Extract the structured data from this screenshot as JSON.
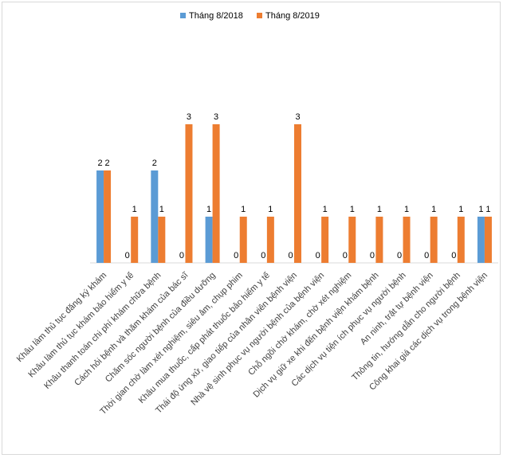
{
  "chart_data": {
    "type": "bar",
    "categories": [
      "Khâu làm thủ tục đăng ký khám",
      "Khâu làm thủ tục khám bảo hiểm y tế",
      "Khâu thanh toán chi phí khám chữa bệnh",
      "Cách hỏi bệnh và thăm khám của bác sĩ",
      "Chăm sóc người bệnh của điều dưỡng",
      "Thời gian chờ làm xét nghiệm, siêu âm, chụp phim",
      "Khâu mua thuốc, cấp phát thuốc bảo hiểm y tế",
      "Thái độ ứng xử, giao tiếp của nhân viên bệnh viện",
      "Nhà vệ sinh phục vụ người bệnh của bệnh viện",
      "Chỗ ngồi chờ khám, chờ xét nghiệm",
      "Dịch vụ giữ xe khi đến bệnh viện khám bệnh",
      "Các dịch vụ tiện ích phục vụ người bệnh",
      "An ninh, trật tự bệnh viện",
      "Thông tin, hướng dẫn cho người bệnh",
      "Công khai giá các dịch vụ trong bệnh viện"
    ],
    "series": [
      {
        "name": "Tháng 8/2018",
        "color": "#5b9bd5",
        "values": [
          2,
          0,
          2,
          0,
          1,
          0,
          0,
          0,
          0,
          0,
          0,
          0,
          0,
          0,
          1
        ]
      },
      {
        "name": "Tháng 8/2019",
        "color": "#ed7d31",
        "values": [
          2,
          1,
          1,
          3,
          3,
          1,
          1,
          3,
          1,
          1,
          1,
          1,
          1,
          1,
          1
        ]
      }
    ],
    "ylim": [
      0,
      5
    ],
    "legend": "top"
  }
}
